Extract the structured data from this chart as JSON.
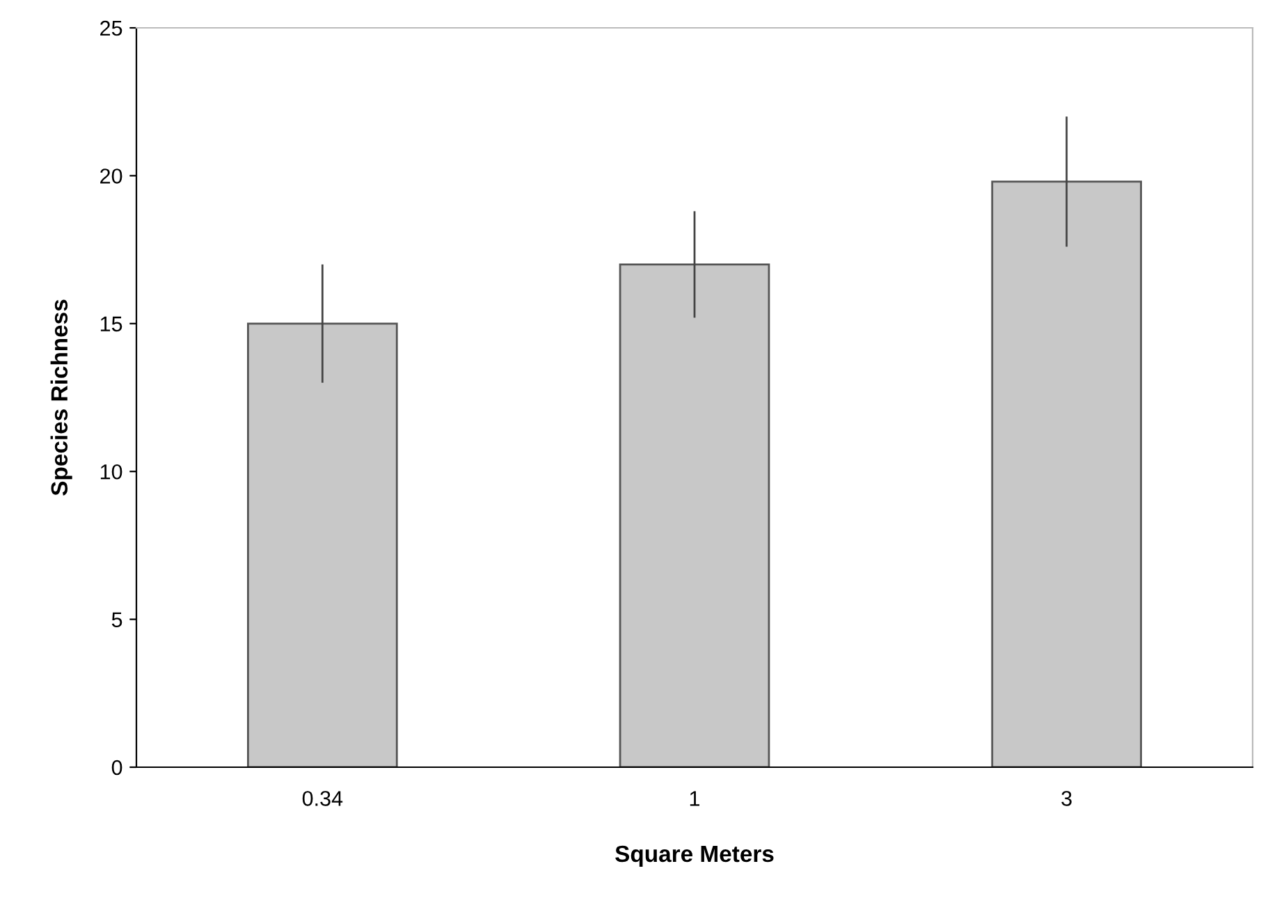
{
  "chart_data": {
    "type": "bar",
    "xlabel": "Square Meters",
    "ylabel": "Species Richness",
    "categories": [
      "0.34",
      "1",
      "3"
    ],
    "values": [
      15,
      17,
      19.8
    ],
    "errors": [
      2,
      1.8,
      2.2
    ],
    "color": "#c8c8c8",
    "ylim": [
      0,
      25
    ],
    "yticks": [
      0,
      5,
      10,
      15,
      20,
      25
    ],
    "grid": false
  }
}
